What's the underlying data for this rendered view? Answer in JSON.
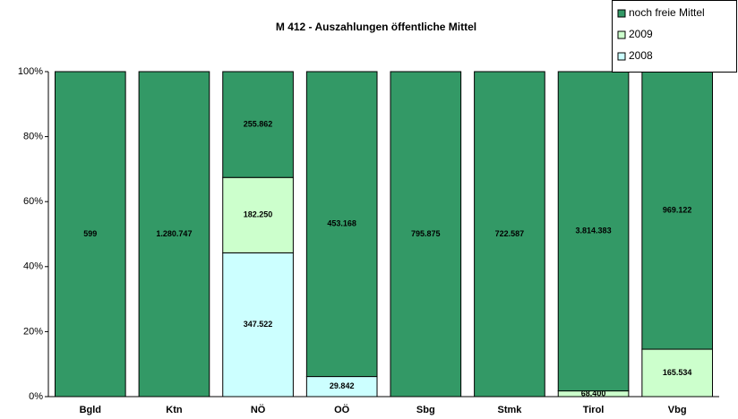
{
  "chart_data": {
    "type": "bar",
    "stacking": "percent",
    "title": "M 412 - Auszahlungen öffentliche Mittel",
    "categories": [
      "Bgld",
      "Ktn",
      "NÖ",
      "OÖ",
      "Sbg",
      "Stmk",
      "Tirol",
      "Vbg"
    ],
    "series": [
      {
        "name": "2008",
        "color": "#ccffff",
        "values": [
          null,
          null,
          347522,
          29842,
          null,
          null,
          null,
          null
        ],
        "value_labels": [
          null,
          null,
          "347.522",
          "29.842",
          null,
          null,
          null,
          null
        ]
      },
      {
        "name": "2009",
        "color": "#ccffcc",
        "values": [
          null,
          null,
          182250,
          null,
          null,
          null,
          68400,
          165534
        ],
        "value_labels": [
          null,
          null,
          "182.250",
          null,
          null,
          null,
          "68.400",
          "165.534"
        ]
      },
      {
        "name": "noch freie Mittel",
        "color": "#339966",
        "values": [
          599,
          1280747,
          255862,
          453168,
          795875,
          722587,
          3814383,
          969122
        ],
        "value_labels": [
          "599",
          "1.280.747",
          "255.862",
          "453.168",
          "795.875",
          "722.587",
          "3.814.383",
          "969.122"
        ]
      }
    ],
    "ylim": [
      0,
      100
    ],
    "yticks": [
      {
        "value": 0,
        "label": "0%"
      },
      {
        "value": 20,
        "label": "20%"
      },
      {
        "value": 40,
        "label": "40%"
      },
      {
        "value": 60,
        "label": "60%"
      },
      {
        "value": 80,
        "label": "80%"
      },
      {
        "value": 100,
        "label": "100%"
      }
    ],
    "grid": false,
    "legend": "top-right"
  }
}
